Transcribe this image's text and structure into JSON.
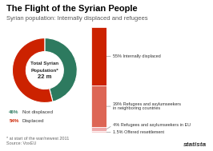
{
  "chart_data": [
    {
      "type": "pie",
      "title": "The Flight of the Syrian People",
      "subtitle": "Syrian population: Internally displaced and refugees",
      "categories": [
        "Not displaced",
        "Displaced"
      ],
      "values": [
        46,
        54
      ],
      "value_labels": [
        "46%",
        "54%"
      ],
      "colors": [
        "#2d7a5f",
        "#cc2200"
      ],
      "annotations": [
        "Total Syrian",
        "Population*",
        "22 m"
      ]
    },
    {
      "type": "bar",
      "stacked": true,
      "tick_labels": false,
      "categories": [
        null
      ],
      "series": [
        {
          "name": "55% Internally displaced",
          "color": "#cc2200",
          "values": [
            55
          ]
        },
        {
          "name": "39% Refugees and asylumseekers\nin neighboring countries",
          "color": "#dd6655",
          "values": [
            39
          ]
        },
        {
          "name": "4% Refugees and asylumseekers in EU",
          "color": "#eeaaaa",
          "values": [
            4
          ]
        },
        {
          "name": "1.5% Offered resettlement",
          "color": "#f5cccc",
          "values": [
            1.5
          ]
        }
      ],
      "annotations": [
        "* at start of the war/newest 2011\nSource: VoxEU",
        "statista"
      ]
    }
  ]
}
